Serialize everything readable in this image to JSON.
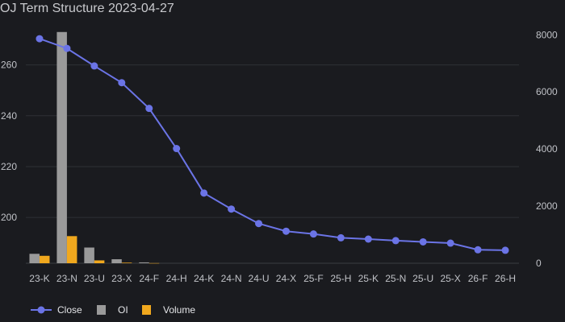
{
  "chart_data": {
    "type": "bar+line",
    "title": "OJ Term Structure 2023-04-27",
    "categories": [
      "23-K",
      "23-N",
      "23-U",
      "23-X",
      "24-F",
      "24-H",
      "24-K",
      "24-N",
      "24-U",
      "24-X",
      "25-F",
      "25-H",
      "25-K",
      "25-N",
      "25-U",
      "25-X",
      "26-F",
      "26-H"
    ],
    "series": [
      {
        "name": "Close",
        "type": "line",
        "axis": "left",
        "color": "#6b74e6",
        "values": [
          270.3,
          266.5,
          259.6,
          253.0,
          242.9,
          227.1,
          209.6,
          203.3,
          197.6,
          194.6,
          193.5,
          192.0,
          191.5,
          190.9,
          190.4,
          189.9,
          187.3,
          187.1
        ]
      },
      {
        "name": "OI",
        "type": "bar",
        "axis": "right",
        "color": "#9a9a9a",
        "values": [
          330,
          8100,
          550,
          140,
          30,
          0,
          0,
          0,
          0,
          0,
          0,
          0,
          0,
          0,
          0,
          0,
          0,
          0
        ]
      },
      {
        "name": "Volume",
        "type": "bar",
        "axis": "right",
        "color": "#f0a81e",
        "values": [
          260,
          950,
          100,
          20,
          5,
          0,
          0,
          0,
          0,
          0,
          0,
          0,
          0,
          0,
          0,
          0,
          0,
          0
        ]
      }
    ],
    "y_left": {
      "ticks": [
        200,
        220,
        240,
        260
      ],
      "ylim": [
        182,
        273.5
      ]
    },
    "y_right": {
      "ticks": [
        0,
        2000,
        4000,
        6000,
        8000
      ],
      "ylim": [
        0,
        8150
      ]
    },
    "grid": true,
    "legend": "bottom-left"
  }
}
